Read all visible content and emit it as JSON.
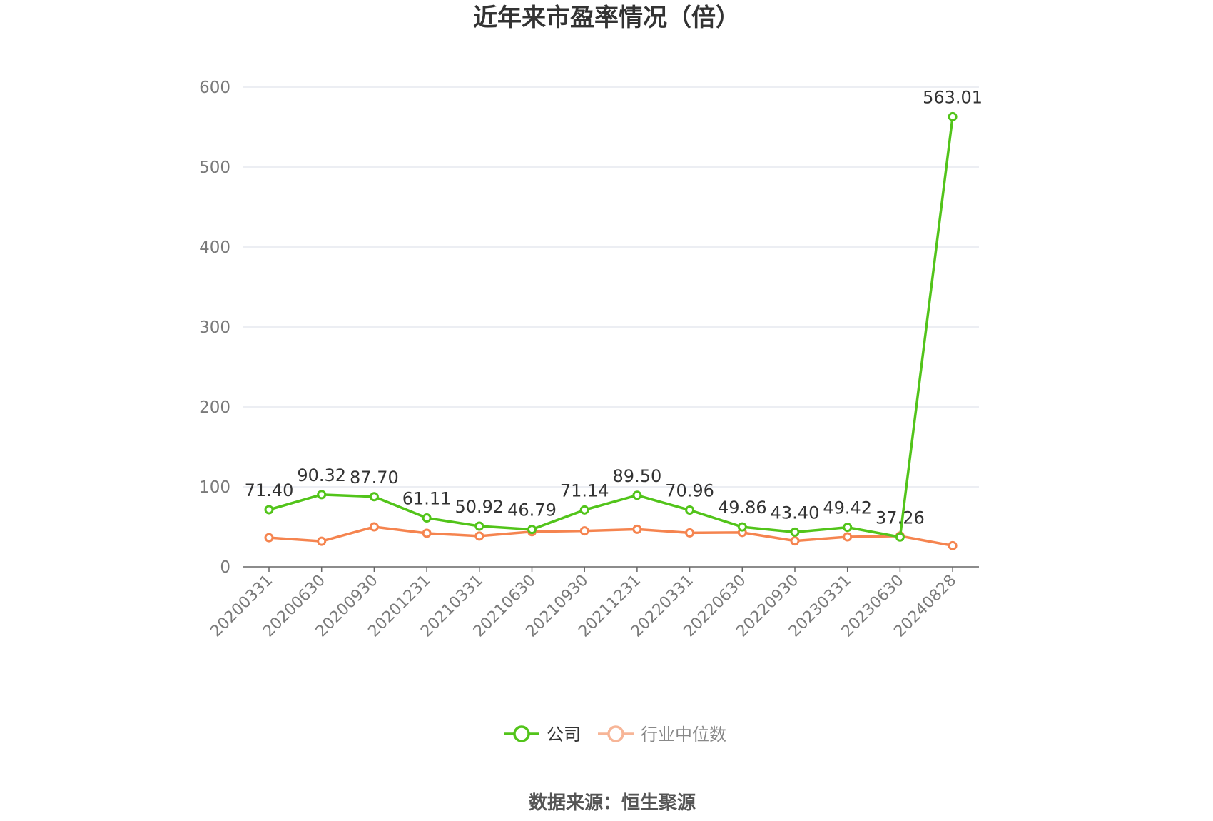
{
  "chart_data": {
    "type": "line",
    "title": "近年来市盈率情况（倍）",
    "categories": [
      "20200331",
      "20200630",
      "20200930",
      "20201231",
      "20210331",
      "20210630",
      "20210930",
      "20211231",
      "20220331",
      "20220630",
      "20220930",
      "20230331",
      "20230630",
      "20240828"
    ],
    "series": [
      {
        "name": "公司",
        "color": "#52c41a",
        "values": [
          71.4,
          90.32,
          87.7,
          61.11,
          50.92,
          46.79,
          71.14,
          89.5,
          70.96,
          49.86,
          43.4,
          49.42,
          37.26,
          563.01
        ],
        "labels": [
          "71.40",
          "90.32",
          "87.70",
          "61.11",
          "50.92",
          "46.79",
          "71.14",
          "89.50",
          "70.96",
          "49.86",
          "43.40",
          "49.42",
          "37.26",
          "563.01"
        ]
      },
      {
        "name": "行业中位数",
        "color": "#f5844f",
        "values": [
          36.5,
          32.0,
          50.0,
          42.0,
          38.5,
          44.0,
          45.0,
          47.0,
          42.5,
          43.0,
          32.5,
          37.5,
          38.5,
          26.5
        ]
      }
    ],
    "y_ticks": [
      "0",
      "100",
      "200",
      "300",
      "400",
      "500",
      "600"
    ],
    "ylim": [
      0,
      600
    ],
    "grid": true,
    "legend_position": "bottom-center",
    "legend_colors": {
      "公司": "#52c41a",
      "行业中位数": "#f7b597"
    },
    "legend_text_colors": {
      "公司": "#333333",
      "行业中位数": "#888888"
    },
    "gridline_color": "#e0e3ec",
    "axis_color": "#666666"
  },
  "source": {
    "text": "数据来源：恒生聚源"
  }
}
